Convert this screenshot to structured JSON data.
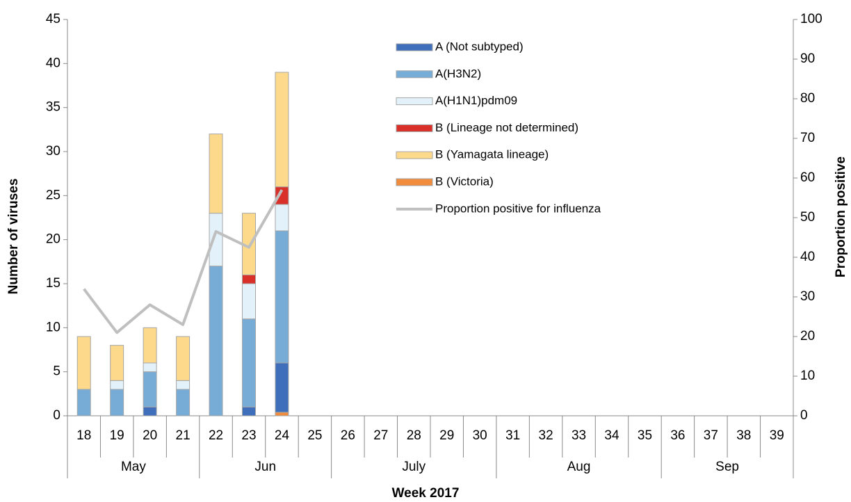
{
  "chart_data": {
    "type": "stacked-bar-line",
    "y_label": "Number of viruses",
    "y2_label": "Proportion positive",
    "x_label": "Week 2017",
    "groups": [
      {
        "label": "May",
        "categories": [
          "18",
          "19",
          "20",
          "21"
        ]
      },
      {
        "label": "Jun",
        "categories": [
          "22",
          "23",
          "24",
          "25"
        ]
      },
      {
        "label": "July",
        "categories": [
          "26",
          "27",
          "28",
          "29",
          "30"
        ]
      },
      {
        "label": "Aug",
        "categories": [
          "31",
          "32",
          "33",
          "34",
          "35"
        ]
      },
      {
        "label": "Sep",
        "categories": [
          "36",
          "37",
          "38",
          "39"
        ]
      }
    ],
    "series": [
      {
        "name": "A (Not subtyped)",
        "type": "bar",
        "color": "#3f6fba",
        "values": [
          0,
          0,
          1,
          0,
          0,
          1,
          5.6,
          null,
          null,
          null,
          null,
          null,
          null,
          null,
          null,
          null,
          null,
          null,
          null,
          null,
          null,
          null
        ]
      },
      {
        "name": "A(H3N2)",
        "type": "bar",
        "color": "#77acd6",
        "values": [
          3,
          3,
          4,
          3,
          17,
          10,
          15,
          null,
          null,
          null,
          null,
          null,
          null,
          null,
          null,
          null,
          null,
          null,
          null,
          null,
          null,
          null
        ]
      },
      {
        "name": "A(H1N1)pdm09",
        "type": "bar",
        "color": "#e3f2fa",
        "values": [
          0,
          1,
          1,
          1,
          6,
          4,
          3,
          null,
          null,
          null,
          null,
          null,
          null,
          null,
          null,
          null,
          null,
          null,
          null,
          null,
          null,
          null
        ]
      },
      {
        "name": "B (Lineage not determined)",
        "type": "bar",
        "color": "#d9302a",
        "values": [
          0,
          0,
          0,
          0,
          0,
          1,
          2,
          null,
          null,
          null,
          null,
          null,
          null,
          null,
          null,
          null,
          null,
          null,
          null,
          null,
          null,
          null
        ]
      },
      {
        "name": "B (Yamagata lineage)",
        "type": "bar",
        "color": "#fdd98b",
        "values": [
          6,
          4,
          4,
          5,
          9,
          7,
          13,
          null,
          null,
          null,
          null,
          null,
          null,
          null,
          null,
          null,
          null,
          null,
          null,
          null,
          null,
          null
        ]
      },
      {
        "name": "B (Victoria)",
        "type": "bar",
        "color": "#f08c3c",
        "values": [
          0,
          0,
          0,
          0,
          0,
          0,
          0.4,
          null,
          null,
          null,
          null,
          null,
          null,
          null,
          null,
          null,
          null,
          null,
          null,
          null,
          null,
          null
        ]
      },
      {
        "name": "Proportion positive for influenza",
        "type": "line",
        "axis": "y2",
        "color": "#bfbfbf",
        "values": [
          32,
          21,
          28,
          23,
          46.5,
          42.5,
          57,
          null,
          null,
          null,
          null,
          null,
          null,
          null,
          null,
          null,
          null,
          null,
          null,
          null,
          null,
          null
        ]
      }
    ],
    "ylim": [
      0,
      45
    ],
    "yticks": [
      0,
      5,
      10,
      15,
      20,
      25,
      30,
      35,
      40,
      45
    ],
    "y2lim": [
      0,
      100
    ],
    "y2ticks": [
      0,
      10,
      20,
      30,
      40,
      50,
      60,
      70,
      80,
      90,
      100
    ]
  }
}
